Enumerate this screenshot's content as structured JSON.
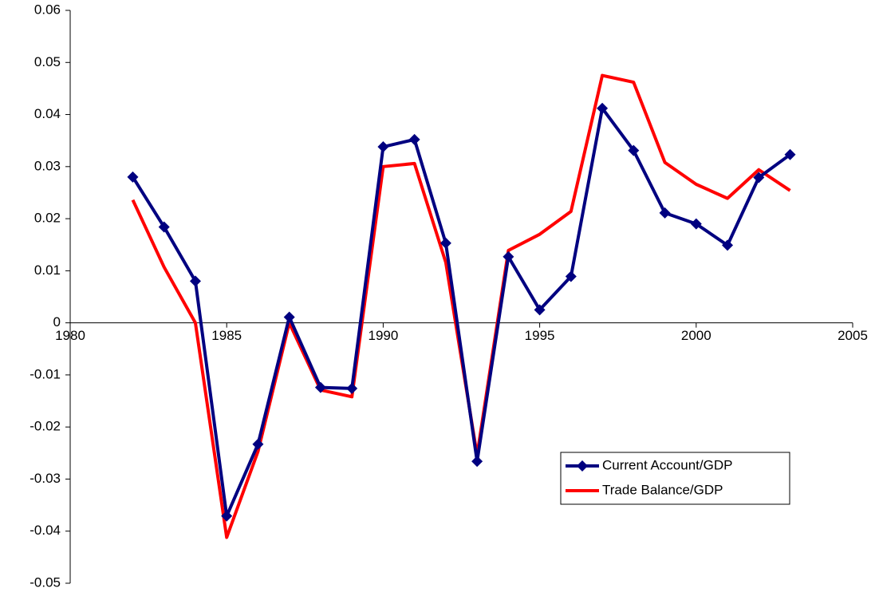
{
  "chart_data": {
    "type": "line",
    "x": [
      1982,
      1983,
      1984,
      1985,
      1986,
      1987,
      1988,
      1989,
      1990,
      1991,
      1992,
      1993,
      1994,
      1995,
      1996,
      1997,
      1998,
      1999,
      2000,
      2001,
      2002,
      2003
    ],
    "series": [
      {
        "name": "Current Account/GDP",
        "color": "#000080",
        "marker": "diamond",
        "values": [
          0.028,
          0.0184,
          0.008,
          -0.0371,
          -0.0233,
          0.0011,
          -0.0124,
          -0.0126,
          0.0338,
          0.0352,
          0.0153,
          -0.0266,
          0.0127,
          0.0025,
          0.0089,
          0.0412,
          0.0331,
          0.0211,
          0.019,
          0.0149,
          0.0279,
          0.0323
        ]
      },
      {
        "name": "Trade Balance/GDP",
        "color": "#ff0000",
        "values": [
          0.0236,
          0.0107,
          0.0,
          -0.0412,
          -0.0247,
          0.0,
          -0.0129,
          -0.0142,
          0.03,
          0.0306,
          0.0116,
          -0.0254,
          0.0139,
          0.017,
          0.0214,
          0.0475,
          0.0462,
          0.0308,
          0.0266,
          0.0239,
          0.0294,
          0.0254
        ]
      }
    ],
    "xlim": [
      1980,
      2005
    ],
    "xticks": [
      1980,
      1985,
      1990,
      1995,
      2000,
      2005
    ],
    "ylim": [
      -0.05,
      0.06
    ],
    "yticks": [
      -0.05,
      -0.04,
      -0.03,
      -0.02,
      -0.01,
      0,
      0.01,
      0.02,
      0.03,
      0.04,
      0.05,
      0.06
    ],
    "grid": false,
    "legend": "lower-right"
  }
}
